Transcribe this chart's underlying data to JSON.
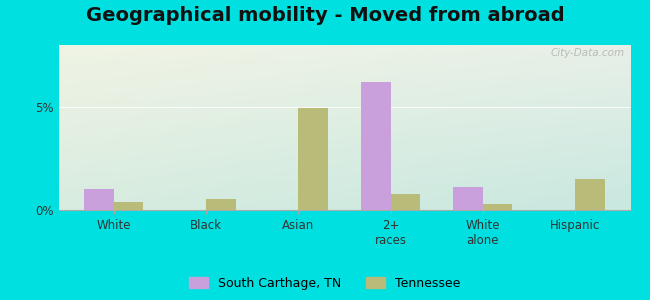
{
  "title": "Geographical mobility - Moved from abroad",
  "categories": [
    "White",
    "Black",
    "Asian",
    "2+\nraces",
    "White\nalone",
    "Hispanic"
  ],
  "south_carthage": [
    1.0,
    0.0,
    0.0,
    6.2,
    1.1,
    0.0
  ],
  "tennessee": [
    0.4,
    0.55,
    4.95,
    0.8,
    0.3,
    1.5
  ],
  "bar_color_sc": "#c9a0dc",
  "bar_color_tn": "#b8bc78",
  "legend_sc": "South Carthage, TN",
  "legend_tn": "Tennessee",
  "ylim": [
    0,
    8
  ],
  "yticks": [
    0,
    5
  ],
  "ytick_labels": [
    "0%",
    "5%"
  ],
  "background_outer": "#00e0e0",
  "bg_top_left": "#f0f4e4",
  "bg_top_right": "#e8f0e8",
  "bg_bottom_left": "#d8ece0",
  "bg_bottom_right": "#c8e8e0",
  "bar_width": 0.32,
  "title_fontsize": 14,
  "watermark": "City-Data.com"
}
